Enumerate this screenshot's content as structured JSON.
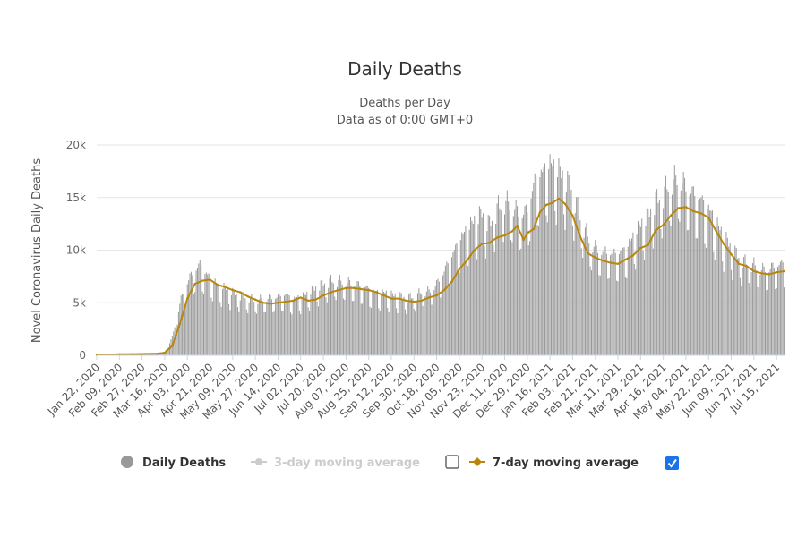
{
  "colors": {
    "bars": "#999999",
    "ma7": "#b8860b",
    "legend_disabled": "#cccccc",
    "checkbox_checked": "#1a73e8",
    "grid": "#e6e6e6"
  },
  "chart_data": {
    "type": "bar",
    "title": "Daily Deaths",
    "subtitle": [
      "Deaths per Day",
      "Data as of 0:00 GMT+0"
    ],
    "ylabel": "Novel Coronavirus Daily Deaths",
    "xlabel": "",
    "ylim": [
      0,
      20000
    ],
    "yticks": [
      {
        "value": 0,
        "label": "0"
      },
      {
        "value": 5000,
        "label": "5k"
      },
      {
        "value": 10000,
        "label": "10k"
      },
      {
        "value": 15000,
        "label": "15k"
      },
      {
        "value": 20000,
        "label": "20k"
      }
    ],
    "xlim": [
      "2020-01-22",
      "2021-07-22"
    ],
    "xticks": [
      "Jan 22, 2020",
      "Feb 09, 2020",
      "Feb 27, 2020",
      "Mar 16, 2020",
      "Apr 03, 2020",
      "Apr 21, 2020",
      "May 09, 2020",
      "May 27, 2020",
      "Jun 14, 2020",
      "Jul 02, 2020",
      "Jul 20, 2020",
      "Aug 07, 2020",
      "Aug 25, 2020",
      "Sep 12, 2020",
      "Sep 30, 2020",
      "Oct 18, 2020",
      "Nov 05, 2020",
      "Nov 23, 2020",
      "Dec 11, 2020",
      "Dec 29, 2020",
      "Jan 16, 2021",
      "Feb 03, 2021",
      "Feb 21, 2021",
      "Mar 11, 2021",
      "Mar 29, 2021",
      "Apr 16, 2021",
      "May 04, 2021",
      "May 22, 2021",
      "Jun 09, 2021",
      "Jun 27, 2021",
      "Jul 15, 2021"
    ],
    "grid": true,
    "legend_position": "bottom",
    "series": [
      {
        "name": "Daily Deaths",
        "type": "bar",
        "visible": true,
        "x": [
          "2020-01-22",
          "2020-02-09",
          "2020-02-27",
          "2020-03-10",
          "2020-03-16",
          "2020-03-22",
          "2020-03-28",
          "2020-04-03",
          "2020-04-08",
          "2020-04-13",
          "2020-04-17",
          "2020-04-21",
          "2020-04-27",
          "2020-05-03",
          "2020-05-09",
          "2020-05-15",
          "2020-05-21",
          "2020-05-27",
          "2020-06-02",
          "2020-06-08",
          "2020-06-14",
          "2020-06-20",
          "2020-06-26",
          "2020-07-02",
          "2020-07-08",
          "2020-07-14",
          "2020-07-20",
          "2020-07-26",
          "2020-08-01",
          "2020-08-07",
          "2020-08-13",
          "2020-08-19",
          "2020-08-25",
          "2020-08-31",
          "2020-09-06",
          "2020-09-12",
          "2020-09-18",
          "2020-09-24",
          "2020-09-30",
          "2020-10-06",
          "2020-10-12",
          "2020-10-18",
          "2020-10-24",
          "2020-10-30",
          "2020-11-05",
          "2020-11-11",
          "2020-11-17",
          "2020-11-23",
          "2020-11-29",
          "2020-12-05",
          "2020-12-11",
          "2020-12-17",
          "2020-12-23",
          "2020-12-29",
          "2021-01-04",
          "2021-01-10",
          "2021-01-16",
          "2021-01-22",
          "2021-01-28",
          "2021-02-03",
          "2021-02-09",
          "2021-02-15",
          "2021-02-21",
          "2021-02-27",
          "2021-03-05",
          "2021-03-11",
          "2021-03-17",
          "2021-03-23",
          "2021-03-29",
          "2021-04-04",
          "2021-04-10",
          "2021-04-16",
          "2021-04-22",
          "2021-04-28",
          "2021-05-04",
          "2021-05-10",
          "2021-05-16",
          "2021-05-22",
          "2021-05-28",
          "2021-06-03",
          "2021-06-09",
          "2021-06-15",
          "2021-06-21",
          "2021-06-27",
          "2021-07-03",
          "2021-07-09",
          "2021-07-15",
          "2021-07-21"
        ],
        "values": [
          20,
          80,
          120,
          100,
          300,
          1600,
          4600,
          6600,
          7400,
          8100,
          7300,
          7000,
          6300,
          6000,
          5600,
          5300,
          5100,
          4900,
          5000,
          5100,
          5200,
          5400,
          5000,
          5200,
          5500,
          6000,
          6400,
          6600,
          6600,
          6500,
          6400,
          6200,
          5900,
          5600,
          5600,
          5400,
          5300,
          5100,
          5200,
          5600,
          5700,
          6300,
          7500,
          8800,
          10200,
          11200,
          12000,
          12600,
          11600,
          13000,
          13600,
          13300,
          12500,
          12800,
          15500,
          16200,
          17000,
          16500,
          15800,
          14500,
          12300,
          10500,
          9500,
          9300,
          9100,
          9000,
          9400,
          10500,
          11600,
          12500,
          13700,
          14300,
          15400,
          15800,
          15000,
          14300,
          13800,
          13000,
          11800,
          10600,
          9600,
          8700,
          8200,
          8000,
          7600,
          7700,
          8000,
          8200
        ]
      },
      {
        "name": "3-day moving average",
        "type": "line",
        "visible": false
      },
      {
        "name": "7-day moving average",
        "type": "line",
        "visible": true,
        "x": [
          "2020-01-22",
          "2020-02-09",
          "2020-03-10",
          "2020-03-16",
          "2020-03-22",
          "2020-03-28",
          "2020-04-03",
          "2020-04-09",
          "2020-04-15",
          "2020-04-21",
          "2020-04-27",
          "2020-05-03",
          "2020-05-09",
          "2020-05-15",
          "2020-05-21",
          "2020-05-27",
          "2020-06-02",
          "2020-06-08",
          "2020-06-14",
          "2020-06-20",
          "2020-06-26",
          "2020-07-02",
          "2020-07-08",
          "2020-07-14",
          "2020-07-20",
          "2020-07-26",
          "2020-08-01",
          "2020-08-07",
          "2020-08-13",
          "2020-08-19",
          "2020-08-25",
          "2020-08-31",
          "2020-09-06",
          "2020-09-12",
          "2020-09-18",
          "2020-09-24",
          "2020-09-30",
          "2020-10-06",
          "2020-10-12",
          "2020-10-18",
          "2020-10-24",
          "2020-10-30",
          "2020-11-05",
          "2020-11-11",
          "2020-11-17",
          "2020-11-23",
          "2020-11-29",
          "2020-12-05",
          "2020-12-11",
          "2020-12-17",
          "2020-12-21",
          "2020-12-26",
          "2020-12-30",
          "2021-01-03",
          "2021-01-08",
          "2021-01-13",
          "2021-01-18",
          "2021-01-23",
          "2021-01-28",
          "2021-02-03",
          "2021-02-09",
          "2021-02-15",
          "2021-02-21",
          "2021-02-27",
          "2021-03-05",
          "2021-03-11",
          "2021-03-17",
          "2021-03-23",
          "2021-03-29",
          "2021-04-04",
          "2021-04-10",
          "2021-04-16",
          "2021-04-22",
          "2021-04-28",
          "2021-05-04",
          "2021-05-10",
          "2021-05-16",
          "2021-05-22",
          "2021-05-28",
          "2021-06-03",
          "2021-06-09",
          "2021-06-15",
          "2021-06-21",
          "2021-06-27",
          "2021-07-03",
          "2021-07-09",
          "2021-07-15",
          "2021-07-21"
        ],
        "values": [
          50,
          100,
          150,
          250,
          900,
          3000,
          5400,
          6800,
          7100,
          7200,
          6700,
          6500,
          6200,
          6000,
          5600,
          5300,
          5000,
          4900,
          5000,
          5100,
          5200,
          5500,
          5200,
          5300,
          5700,
          6000,
          6200,
          6400,
          6400,
          6300,
          6200,
          6000,
          5700,
          5400,
          5400,
          5200,
          5100,
          5200,
          5500,
          5700,
          6200,
          7000,
          8200,
          9000,
          10000,
          10600,
          10700,
          11200,
          11400,
          11800,
          12300,
          11000,
          11700,
          12000,
          13600,
          14300,
          14500,
          14900,
          14400,
          13300,
          11300,
          9700,
          9300,
          9000,
          8800,
          8700,
          9100,
          9500,
          10200,
          10500,
          11900,
          12400,
          13300,
          14000,
          14100,
          13700,
          13500,
          13100,
          11800,
          10600,
          9600,
          8700,
          8500,
          8000,
          7800,
          7700,
          7900,
          8000
        ]
      }
    ]
  },
  "legend": {
    "daily_deaths": "Daily Deaths",
    "ma3": "3-day moving average",
    "ma7": "7-day moving average",
    "ma3_checked": false,
    "ma7_checked": true
  }
}
